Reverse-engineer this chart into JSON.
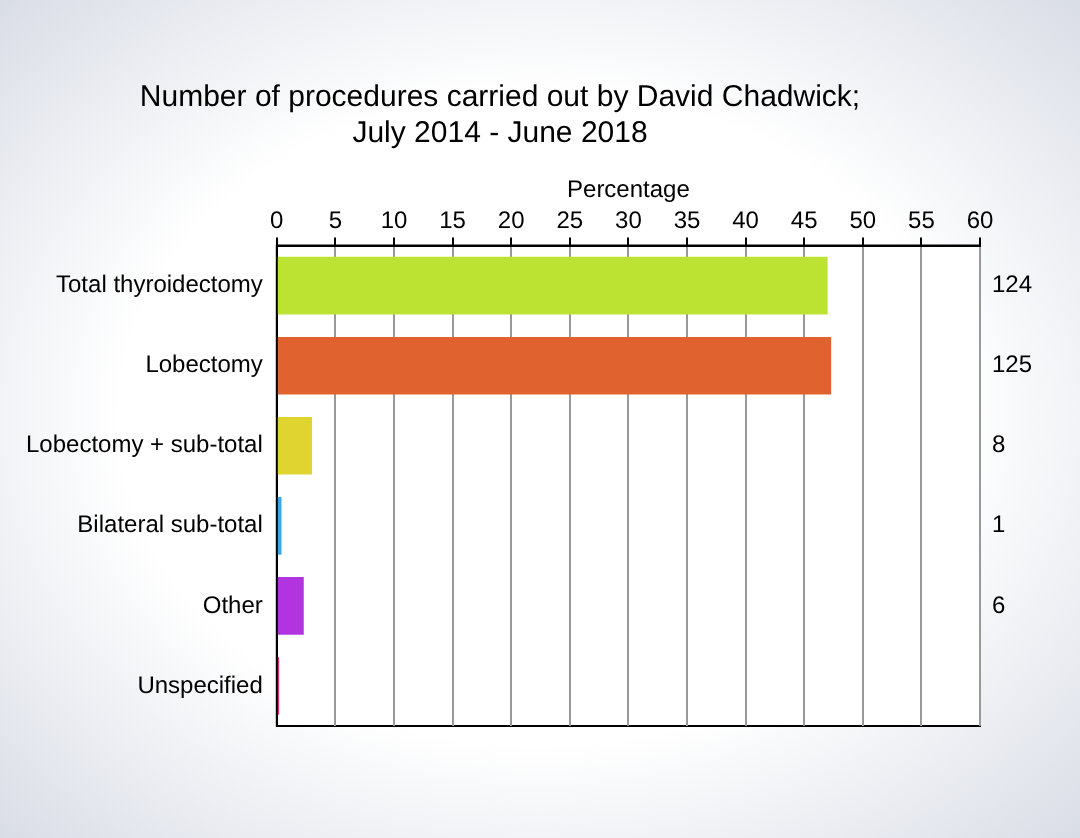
{
  "chart_data": {
    "type": "bar",
    "orientation": "horizontal",
    "title": [
      "Number of procedures carried out by David Chadwick;",
      "July 2014 - June 2018"
    ],
    "xlabel": "Percentage",
    "categories": [
      "Total thyroidectomy",
      "Lobectomy",
      "Lobectomy + sub-total",
      "Bilateral sub-total",
      "Other",
      "Unspecified"
    ],
    "values": [
      47.0,
      47.3,
      3.0,
      0.4,
      2.3,
      0.2
    ],
    "colors": [
      "#bde332",
      "#e0632f",
      "#e0d530",
      "#3aa8e8",
      "#b234e0",
      "#e0306a"
    ],
    "y2_categories": [
      "124",
      "125",
      "8",
      "1",
      "6",
      null
    ],
    "xlim": [
      0,
      60
    ],
    "xticks": [
      0,
      5,
      10,
      15,
      20,
      25,
      30,
      35,
      40,
      45,
      50,
      55,
      60
    ],
    "grid": "x",
    "legend": false
  }
}
